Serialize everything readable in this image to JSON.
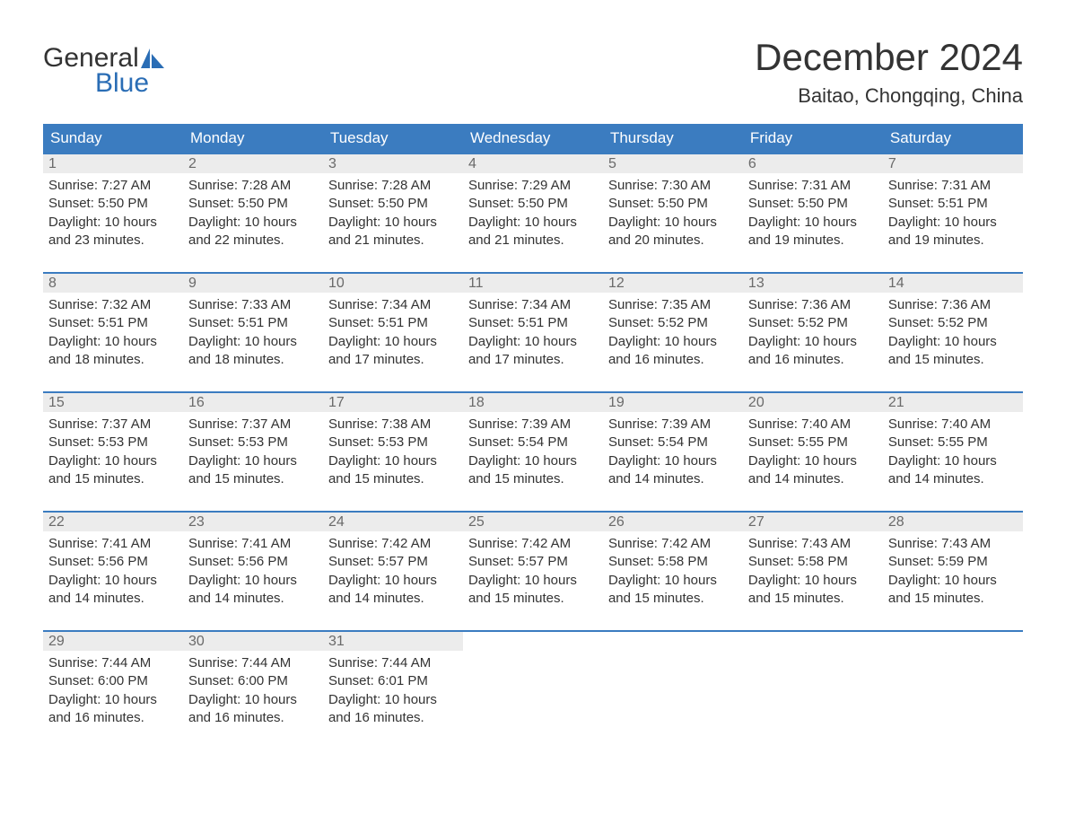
{
  "logo": {
    "top": "General",
    "bottom": "Blue",
    "icon_color": "#2a6db5",
    "text_top_color": "#333333",
    "text_bottom_color": "#2a6db5"
  },
  "title": "December 2024",
  "location": "Baitao, Chongqing, China",
  "colors": {
    "header_bg": "#3b7cc0",
    "header_text": "#ffffff",
    "daynum_bg": "#ececec",
    "daynum_text": "#6a6a6a",
    "row_border": "#3b7cc0",
    "body_text": "#333333",
    "page_bg": "#ffffff"
  },
  "fonts": {
    "title_size": 42,
    "location_size": 22,
    "dow_size": 17,
    "daynum_size": 16,
    "detail_size": 15
  },
  "days_of_week": [
    "Sunday",
    "Monday",
    "Tuesday",
    "Wednesday",
    "Thursday",
    "Friday",
    "Saturday"
  ],
  "weeks": [
    [
      {
        "n": "1",
        "sr": "Sunrise: 7:27 AM",
        "ss": "Sunset: 5:50 PM",
        "d1": "Daylight: 10 hours",
        "d2": "and 23 minutes."
      },
      {
        "n": "2",
        "sr": "Sunrise: 7:28 AM",
        "ss": "Sunset: 5:50 PM",
        "d1": "Daylight: 10 hours",
        "d2": "and 22 minutes."
      },
      {
        "n": "3",
        "sr": "Sunrise: 7:28 AM",
        "ss": "Sunset: 5:50 PM",
        "d1": "Daylight: 10 hours",
        "d2": "and 21 minutes."
      },
      {
        "n": "4",
        "sr": "Sunrise: 7:29 AM",
        "ss": "Sunset: 5:50 PM",
        "d1": "Daylight: 10 hours",
        "d2": "and 21 minutes."
      },
      {
        "n": "5",
        "sr": "Sunrise: 7:30 AM",
        "ss": "Sunset: 5:50 PM",
        "d1": "Daylight: 10 hours",
        "d2": "and 20 minutes."
      },
      {
        "n": "6",
        "sr": "Sunrise: 7:31 AM",
        "ss": "Sunset: 5:50 PM",
        "d1": "Daylight: 10 hours",
        "d2": "and 19 minutes."
      },
      {
        "n": "7",
        "sr": "Sunrise: 7:31 AM",
        "ss": "Sunset: 5:51 PM",
        "d1": "Daylight: 10 hours",
        "d2": "and 19 minutes."
      }
    ],
    [
      {
        "n": "8",
        "sr": "Sunrise: 7:32 AM",
        "ss": "Sunset: 5:51 PM",
        "d1": "Daylight: 10 hours",
        "d2": "and 18 minutes."
      },
      {
        "n": "9",
        "sr": "Sunrise: 7:33 AM",
        "ss": "Sunset: 5:51 PM",
        "d1": "Daylight: 10 hours",
        "d2": "and 18 minutes."
      },
      {
        "n": "10",
        "sr": "Sunrise: 7:34 AM",
        "ss": "Sunset: 5:51 PM",
        "d1": "Daylight: 10 hours",
        "d2": "and 17 minutes."
      },
      {
        "n": "11",
        "sr": "Sunrise: 7:34 AM",
        "ss": "Sunset: 5:51 PM",
        "d1": "Daylight: 10 hours",
        "d2": "and 17 minutes."
      },
      {
        "n": "12",
        "sr": "Sunrise: 7:35 AM",
        "ss": "Sunset: 5:52 PM",
        "d1": "Daylight: 10 hours",
        "d2": "and 16 minutes."
      },
      {
        "n": "13",
        "sr": "Sunrise: 7:36 AM",
        "ss": "Sunset: 5:52 PM",
        "d1": "Daylight: 10 hours",
        "d2": "and 16 minutes."
      },
      {
        "n": "14",
        "sr": "Sunrise: 7:36 AM",
        "ss": "Sunset: 5:52 PM",
        "d1": "Daylight: 10 hours",
        "d2": "and 15 minutes."
      }
    ],
    [
      {
        "n": "15",
        "sr": "Sunrise: 7:37 AM",
        "ss": "Sunset: 5:53 PM",
        "d1": "Daylight: 10 hours",
        "d2": "and 15 minutes."
      },
      {
        "n": "16",
        "sr": "Sunrise: 7:37 AM",
        "ss": "Sunset: 5:53 PM",
        "d1": "Daylight: 10 hours",
        "d2": "and 15 minutes."
      },
      {
        "n": "17",
        "sr": "Sunrise: 7:38 AM",
        "ss": "Sunset: 5:53 PM",
        "d1": "Daylight: 10 hours",
        "d2": "and 15 minutes."
      },
      {
        "n": "18",
        "sr": "Sunrise: 7:39 AM",
        "ss": "Sunset: 5:54 PM",
        "d1": "Daylight: 10 hours",
        "d2": "and 15 minutes."
      },
      {
        "n": "19",
        "sr": "Sunrise: 7:39 AM",
        "ss": "Sunset: 5:54 PM",
        "d1": "Daylight: 10 hours",
        "d2": "and 14 minutes."
      },
      {
        "n": "20",
        "sr": "Sunrise: 7:40 AM",
        "ss": "Sunset: 5:55 PM",
        "d1": "Daylight: 10 hours",
        "d2": "and 14 minutes."
      },
      {
        "n": "21",
        "sr": "Sunrise: 7:40 AM",
        "ss": "Sunset: 5:55 PM",
        "d1": "Daylight: 10 hours",
        "d2": "and 14 minutes."
      }
    ],
    [
      {
        "n": "22",
        "sr": "Sunrise: 7:41 AM",
        "ss": "Sunset: 5:56 PM",
        "d1": "Daylight: 10 hours",
        "d2": "and 14 minutes."
      },
      {
        "n": "23",
        "sr": "Sunrise: 7:41 AM",
        "ss": "Sunset: 5:56 PM",
        "d1": "Daylight: 10 hours",
        "d2": "and 14 minutes."
      },
      {
        "n": "24",
        "sr": "Sunrise: 7:42 AM",
        "ss": "Sunset: 5:57 PM",
        "d1": "Daylight: 10 hours",
        "d2": "and 14 minutes."
      },
      {
        "n": "25",
        "sr": "Sunrise: 7:42 AM",
        "ss": "Sunset: 5:57 PM",
        "d1": "Daylight: 10 hours",
        "d2": "and 15 minutes."
      },
      {
        "n": "26",
        "sr": "Sunrise: 7:42 AM",
        "ss": "Sunset: 5:58 PM",
        "d1": "Daylight: 10 hours",
        "d2": "and 15 minutes."
      },
      {
        "n": "27",
        "sr": "Sunrise: 7:43 AM",
        "ss": "Sunset: 5:58 PM",
        "d1": "Daylight: 10 hours",
        "d2": "and 15 minutes."
      },
      {
        "n": "28",
        "sr": "Sunrise: 7:43 AM",
        "ss": "Sunset: 5:59 PM",
        "d1": "Daylight: 10 hours",
        "d2": "and 15 minutes."
      }
    ],
    [
      {
        "n": "29",
        "sr": "Sunrise: 7:44 AM",
        "ss": "Sunset: 6:00 PM",
        "d1": "Daylight: 10 hours",
        "d2": "and 16 minutes."
      },
      {
        "n": "30",
        "sr": "Sunrise: 7:44 AM",
        "ss": "Sunset: 6:00 PM",
        "d1": "Daylight: 10 hours",
        "d2": "and 16 minutes."
      },
      {
        "n": "31",
        "sr": "Sunrise: 7:44 AM",
        "ss": "Sunset: 6:01 PM",
        "d1": "Daylight: 10 hours",
        "d2": "and 16 minutes."
      },
      null,
      null,
      null,
      null
    ]
  ]
}
